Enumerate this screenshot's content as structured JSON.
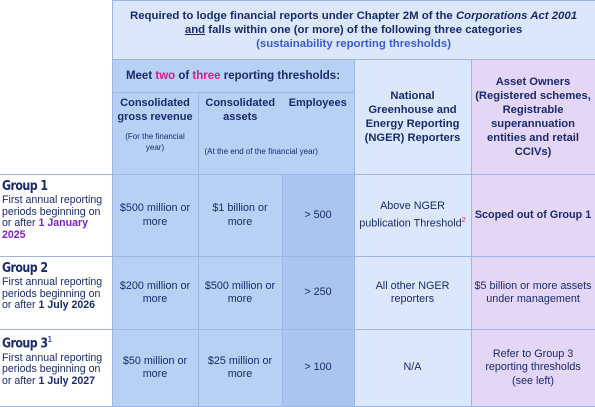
{
  "banner": {
    "line1_a": "Required to lodge financial reports under Chapter 2M of the ",
    "line1_ital": "Corporations Act 2001",
    "line2_under": "and",
    "line2_rest": " falls within one (or more) of the following three categories",
    "line3": "(sustainability reporting thresholds)"
  },
  "meet": {
    "pre": "Meet ",
    "two": "two",
    "mid": " of ",
    "three": "three",
    "post": " reporting thresholds:"
  },
  "columns": {
    "revenue": {
      "title": "Consolidated gross revenue",
      "note": "(For the financial year)"
    },
    "assets": {
      "title": "Consolidated assets",
      "note": "(At the end of the financial year)"
    },
    "employees": {
      "title": "Employees"
    },
    "nger": {
      "title": "National Greenhouse and Energy Reporting (NGER) Reporters"
    },
    "asset_owners": {
      "title": "Asset Owners (Registered schemes, Registrable superannuation entities and retail CCIVs)"
    }
  },
  "groups": [
    {
      "name": "Group 1",
      "sup": "",
      "desc": "First annual reporting periods beginning on or after ",
      "date": "1 January 2025",
      "revenue": "$500 million or more",
      "assets": "$1 billion or more",
      "employees": "> 500",
      "nger": "Above NGER publication Threshold",
      "nger_sup": "2",
      "asset_owners": "Scoped out of Group 1"
    },
    {
      "name": "Group 2",
      "sup": "",
      "desc": "First annual reporting periods beginning on or after ",
      "date": "1 July 2026",
      "revenue": "$200 million or more",
      "assets": "$500 million or more",
      "employees": "> 250",
      "nger": "All other NGER reporters",
      "asset_owners": "$5 billion or more assets under management"
    },
    {
      "name": "Group 3",
      "sup": "1",
      "desc": "First annual reporting periods beginning on or after ",
      "date": "1 July 2027",
      "revenue": "$50 million or more",
      "assets": "$25 million or more",
      "employees": "> 100",
      "nger": "N/A",
      "asset_owners": "Refer to Group 3 reporting thresholds (see left)"
    }
  ],
  "colors": {
    "navy_text": "#1a2a6c",
    "blue_fill": "#b7d1f5",
    "light_blue_fill": "#dbe8fb",
    "lavender_fill": "#e3d6f6",
    "magenta": "#d81b85",
    "purple": "#7a22c9"
  }
}
